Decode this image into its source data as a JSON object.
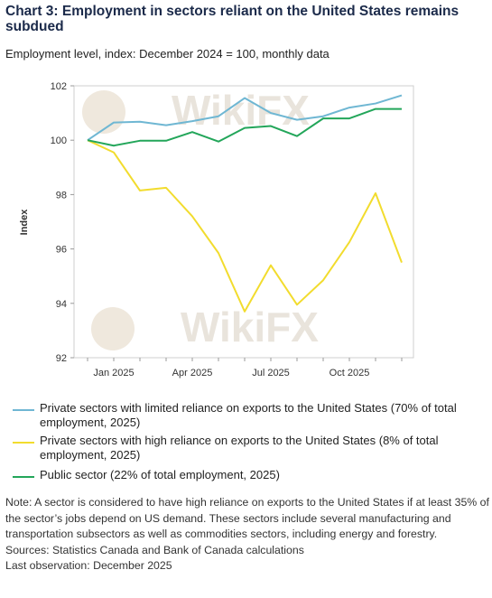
{
  "header": {
    "title": "Chart 3: Employment in sectors reliant on the United States remains subdued",
    "subtitle": "Employment level, index: December 2024 = 100, monthly data"
  },
  "watermark": {
    "text": "WikiFX"
  },
  "chart_data": {
    "type": "line",
    "x": [
      "Dec 2024",
      "Jan 2025",
      "Feb 2025",
      "Mar 2025",
      "Apr 2025",
      "May 2025",
      "Jun 2025",
      "Jul 2025",
      "Aug 2025",
      "Sep 2025",
      "Oct 2025",
      "Nov 2025",
      "Dec 2025"
    ],
    "x_tick_labels": [
      {
        "label": "Jan 2025",
        "index": 1
      },
      {
        "label": "Apr 2025",
        "index": 4
      },
      {
        "label": "Jul 2025",
        "index": 7
      },
      {
        "label": "Oct 2025",
        "index": 10
      }
    ],
    "ylabel": "Index",
    "ylim": [
      92,
      102
    ],
    "yticks": [
      92,
      94,
      96,
      98,
      100,
      102
    ],
    "grid": false,
    "legend_position": "bottom",
    "series": [
      {
        "name": "Private sectors with limited reliance on exports to the United States (70% of total employment, 2025)",
        "color": "#6fb7d3",
        "values": [
          100.0,
          100.65,
          100.68,
          100.55,
          100.7,
          100.88,
          101.55,
          101.0,
          100.75,
          100.88,
          101.2,
          101.35,
          101.65
        ]
      },
      {
        "name": "Private sectors with high reliance on exports to the United States (8% of total employment, 2025)",
        "color": "#f2dc2e",
        "values": [
          100.0,
          99.55,
          98.15,
          98.25,
          97.2,
          95.85,
          93.7,
          95.4,
          93.95,
          94.85,
          96.25,
          98.05,
          95.5
        ]
      },
      {
        "name": "Public sector (22% of total employment, 2025)",
        "color": "#23a65a",
        "values": [
          100.0,
          99.8,
          99.98,
          99.98,
          100.3,
          99.95,
          100.45,
          100.52,
          100.15,
          100.8,
          100.8,
          101.15,
          101.15
        ]
      }
    ]
  },
  "notes": {
    "note": "Note: A sector is considered to have high reliance on exports to the United States if at least 35% of the sector’s jobs depend on US demand. These sectors include several manufacturing and transportation subsectors as well as commodities sectors, including energy and forestry.",
    "sources": "Sources: Statistics Canada and Bank of Canada calculations",
    "last_observation": "Last observation: December 2025"
  }
}
